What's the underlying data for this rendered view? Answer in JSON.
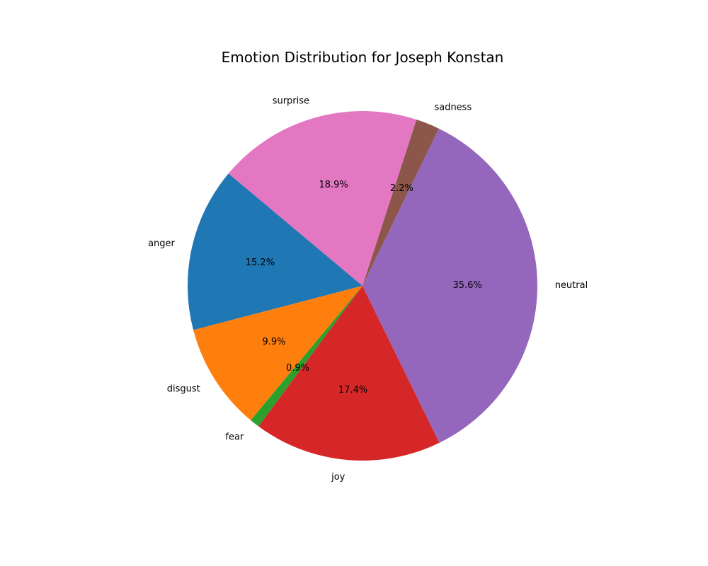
{
  "chart_data": {
    "type": "pie",
    "title": "Emotion Distribution for Joseph Konstan",
    "start_angle_deg": 140,
    "direction": "counterclockwise",
    "slices": [
      {
        "label": "anger",
        "value": 15.2,
        "pct_label": "15.2%",
        "color": "#1f77b4"
      },
      {
        "label": "disgust",
        "value": 9.9,
        "pct_label": "9.9%",
        "color": "#ff7f0e"
      },
      {
        "label": "fear",
        "value": 0.9,
        "pct_label": "0.9%",
        "color": "#2ca02c"
      },
      {
        "label": "joy",
        "value": 17.4,
        "pct_label": "17.4%",
        "color": "#d62728"
      },
      {
        "label": "neutral",
        "value": 35.6,
        "pct_label": "35.6%",
        "color": "#9467bd"
      },
      {
        "label": "sadness",
        "value": 2.2,
        "pct_label": "2.2%",
        "color": "#8c564b"
      },
      {
        "label": "surprise",
        "value": 18.9,
        "pct_label": "18.9%",
        "color": "#e377c2"
      }
    ]
  }
}
